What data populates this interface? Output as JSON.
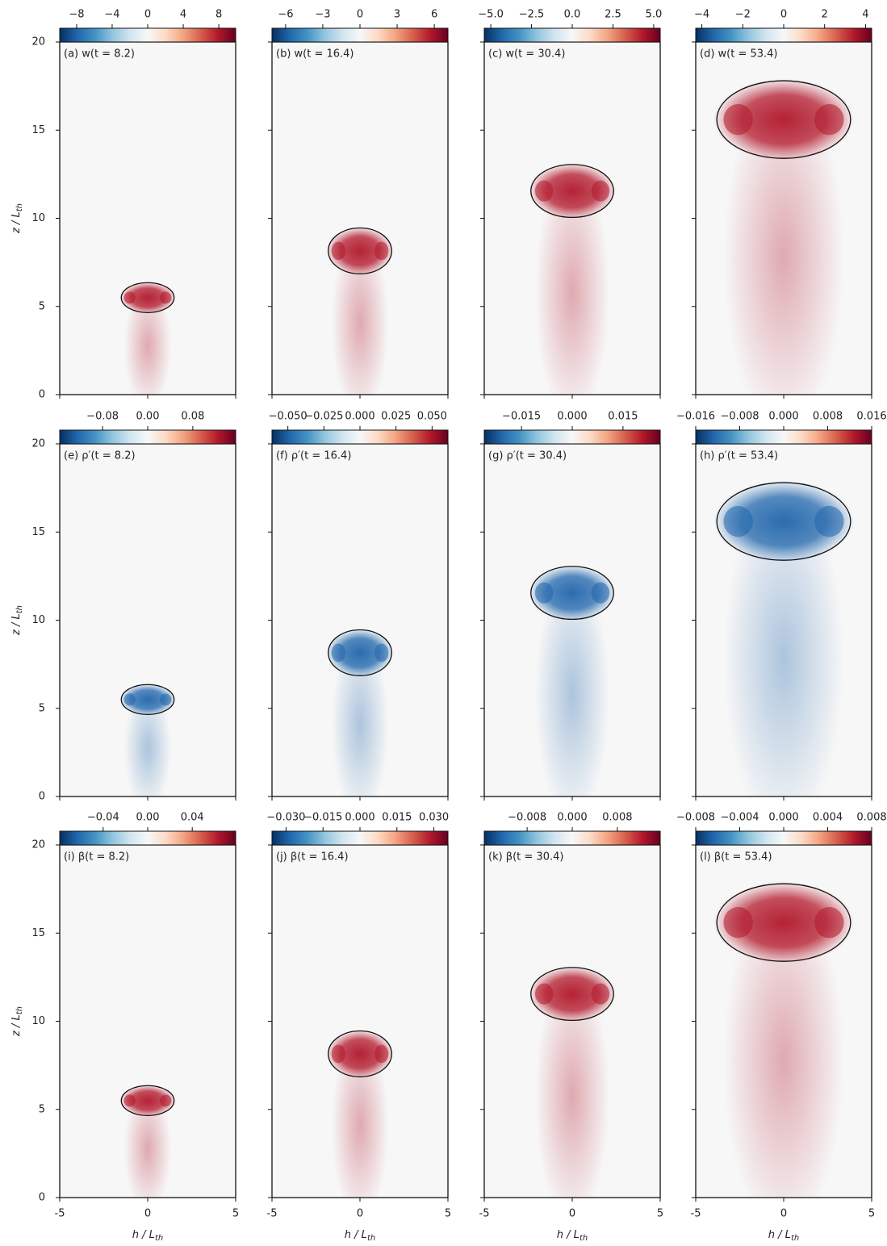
{
  "colormap": [
    "#053061",
    "#2166ac",
    "#4393c3",
    "#92c5de",
    "#d1e5f0",
    "#f7f7f7",
    "#fddbc7",
    "#f4a582",
    "#d6604d",
    "#b2182b",
    "#67001f"
  ],
  "chart_data": [
    {
      "type": "heatmap",
      "title": "(a) w(t = 8.2)",
      "color": "#b2182b",
      "xlim": [
        -5,
        5
      ],
      "ylim": [
        0,
        20
      ],
      "xticks": [
        -5,
        0,
        5
      ],
      "yticks": [
        0,
        5,
        10,
        15,
        20
      ],
      "ylabel": {
        "text": "z / L",
        "sub": "th"
      },
      "ellipse": {
        "center": [
          0,
          5.5
        ],
        "radii": [
          1.5,
          0.85
        ]
      },
      "colorbar": {
        "clim": [
          -9.9,
          9.9
        ],
        "ticks": [
          {
            "value": -8,
            "label": "−8"
          },
          {
            "value": -4,
            "label": "−4"
          },
          0,
          4,
          8
        ]
      }
    },
    {
      "type": "heatmap",
      "title": "(b) w(t = 16.4)",
      "color": "#b2182b",
      "xlim": [
        -5,
        5
      ],
      "ylim": [
        0,
        20
      ],
      "xticks": [
        -5,
        0,
        5
      ],
      "yticks": [
        0,
        5,
        10,
        15,
        20
      ],
      "ellipse": {
        "center": [
          0,
          8.15
        ],
        "radii": [
          1.8,
          1.3
        ]
      },
      "colorbar": {
        "clim": [
          -7.1,
          7.1
        ],
        "ticks": [
          {
            "value": -6,
            "label": "−6"
          },
          {
            "value": -3,
            "label": "−3"
          },
          0,
          3,
          6
        ]
      }
    },
    {
      "type": "heatmap",
      "title": "(c) w(t = 30.4)",
      "color": "#b2182b",
      "xlim": [
        -5,
        5
      ],
      "ylim": [
        0,
        20
      ],
      "xticks": [
        -5,
        0,
        5
      ],
      "yticks": [
        0,
        5,
        10,
        15,
        20
      ],
      "ellipse": {
        "center": [
          0,
          11.55
        ],
        "radii": [
          2.35,
          1.5
        ]
      },
      "colorbar": {
        "clim": [
          -5.4,
          5.4
        ],
        "ticks": [
          {
            "value": -5,
            "label": "−5.0"
          },
          {
            "value": -2.5,
            "label": "−2.5"
          },
          {
            "value": 0,
            "label": "0.0"
          },
          2.5,
          {
            "value": 5,
            "label": "5.0"
          }
        ]
      }
    },
    {
      "type": "heatmap",
      "title": "(d) w(t = 53.4)",
      "color": "#b2182b",
      "xlim": [
        -5,
        5
      ],
      "ylim": [
        0,
        20
      ],
      "xticks": [
        -5,
        0,
        5
      ],
      "yticks": [
        0,
        5,
        10,
        15,
        20
      ],
      "ellipse": {
        "center": [
          0,
          15.6
        ],
        "radii": [
          3.8,
          2.2
        ]
      },
      "colorbar": {
        "clim": [
          -4.3,
          4.3
        ],
        "ticks": [
          {
            "value": -4,
            "label": "−4"
          },
          {
            "value": -2,
            "label": "−2"
          },
          0,
          2,
          4
        ]
      }
    },
    {
      "type": "heatmap",
      "title": "(e) ρ′(t = 8.2)",
      "color": "#2166ac",
      "xlim": [
        -5,
        5
      ],
      "ylim": [
        0,
        20
      ],
      "xticks": [
        -5,
        0,
        5
      ],
      "yticks": [
        0,
        5,
        10,
        15,
        20
      ],
      "ylabel": {
        "text": "z / L",
        "sub": "th"
      },
      "ellipse": {
        "center": [
          0,
          5.5
        ],
        "radii": [
          1.5,
          0.85
        ]
      },
      "colorbar": {
        "clim": [
          -0.156,
          0.156
        ],
        "ticks": [
          {
            "value": -0.08,
            "label": "−0.08"
          },
          {
            "value": 0,
            "label": "0.00"
          },
          0.08
        ]
      }
    },
    {
      "type": "heatmap",
      "title": "(f) ρ′(t = 16.4)",
      "color": "#2166ac",
      "xlim": [
        -5,
        5
      ],
      "ylim": [
        0,
        20
      ],
      "xticks": [
        -5,
        0,
        5
      ],
      "yticks": [
        0,
        5,
        10,
        15,
        20
      ],
      "ellipse": {
        "center": [
          0,
          8.15
        ],
        "radii": [
          1.8,
          1.3
        ]
      },
      "colorbar": {
        "clim": [
          -0.061,
          0.061
        ],
        "ticks": [
          {
            "value": -0.05,
            "label": "−0.050"
          },
          {
            "value": -0.025,
            "label": "−0.025"
          },
          {
            "value": 0,
            "label": "0.000"
          },
          0.025,
          {
            "value": 0.05,
            "label": "0.050"
          }
        ]
      }
    },
    {
      "type": "heatmap",
      "title": "(g) ρ′(t = 30.4)",
      "color": "#2166ac",
      "xlim": [
        -5,
        5
      ],
      "ylim": [
        0,
        20
      ],
      "xticks": [
        -5,
        0,
        5
      ],
      "yticks": [
        0,
        5,
        10,
        15,
        20
      ],
      "ellipse": {
        "center": [
          0,
          11.55
        ],
        "radii": [
          2.35,
          1.5
        ]
      },
      "colorbar": {
        "clim": [
          -0.026,
          0.026
        ],
        "ticks": [
          {
            "value": -0.015,
            "label": "−0.015"
          },
          {
            "value": 0,
            "label": "0.000"
          },
          0.015
        ]
      }
    },
    {
      "type": "heatmap",
      "title": "(h) ρ′(t = 53.4)",
      "color": "#2166ac",
      "xlim": [
        -5,
        5
      ],
      "ylim": [
        0,
        20
      ],
      "xticks": [
        -5,
        0,
        5
      ],
      "yticks": [
        0,
        5,
        10,
        15,
        20
      ],
      "ellipse": {
        "center": [
          0,
          15.6
        ],
        "radii": [
          3.8,
          2.2
        ]
      },
      "colorbar": {
        "clim": [
          -0.016,
          0.016
        ],
        "ticks": [
          {
            "value": -0.016,
            "label": "−0.016"
          },
          {
            "value": -0.008,
            "label": "−0.008"
          },
          {
            "value": 0,
            "label": "0.000"
          },
          0.008,
          0.016
        ]
      }
    },
    {
      "type": "heatmap",
      "title": "(i) β(t = 8.2)",
      "color": "#b2182b",
      "xlim": [
        -5,
        5
      ],
      "ylim": [
        0,
        20
      ],
      "xticks": [
        -5,
        0,
        5
      ],
      "yticks": [
        0,
        5,
        10,
        15,
        20
      ],
      "ylabel": {
        "text": "z / L",
        "sub": "th"
      },
      "xlabel": {
        "text": "h / L",
        "sub": "th"
      },
      "ellipse": {
        "center": [
          0,
          5.5
        ],
        "radii": [
          1.5,
          0.85
        ]
      },
      "colorbar": {
        "clim": [
          -0.079,
          0.079
        ],
        "ticks": [
          {
            "value": -0.04,
            "label": "−0.04"
          },
          {
            "value": 0,
            "label": "0.00"
          },
          0.04
        ]
      }
    },
    {
      "type": "heatmap",
      "title": "(j) β(t = 16.4)",
      "color": "#b2182b",
      "xlim": [
        -5,
        5
      ],
      "ylim": [
        0,
        20
      ],
      "xticks": [
        -5,
        0,
        5
      ],
      "yticks": [
        0,
        5,
        10,
        15,
        20
      ],
      "xlabel": {
        "text": "h / L",
        "sub": "th"
      },
      "ellipse": {
        "center": [
          0,
          8.15
        ],
        "radii": [
          1.8,
          1.3
        ]
      },
      "colorbar": {
        "clim": [
          -0.0357,
          0.0357
        ],
        "ticks": [
          {
            "value": -0.03,
            "label": "−0.030"
          },
          {
            "value": -0.015,
            "label": "−0.015"
          },
          {
            "value": 0,
            "label": "0.000"
          },
          0.015,
          {
            "value": 0.03,
            "label": "0.030"
          }
        ]
      }
    },
    {
      "type": "heatmap",
      "title": "(k) β(t = 30.4)",
      "color": "#b2182b",
      "xlim": [
        -5,
        5
      ],
      "ylim": [
        0,
        20
      ],
      "xticks": [
        -5,
        0,
        5
      ],
      "yticks": [
        0,
        5,
        10,
        15,
        20
      ],
      "xlabel": {
        "text": "h / L",
        "sub": "th"
      },
      "ellipse": {
        "center": [
          0,
          11.55
        ],
        "radii": [
          2.35,
          1.5
        ]
      },
      "colorbar": {
        "clim": [
          -0.0156,
          0.0156
        ],
        "ticks": [
          {
            "value": -0.008,
            "label": "−0.008"
          },
          {
            "value": 0,
            "label": "0.000"
          },
          0.008
        ]
      }
    },
    {
      "type": "heatmap",
      "title": "(l) β(t = 53.4)",
      "color": "#b2182b",
      "xlim": [
        -5,
        5
      ],
      "ylim": [
        0,
        20
      ],
      "xticks": [
        -5,
        0,
        5
      ],
      "yticks": [
        0,
        5,
        10,
        15,
        20
      ],
      "xlabel": {
        "text": "h / L",
        "sub": "th"
      },
      "ellipse": {
        "center": [
          0,
          15.6
        ],
        "radii": [
          3.8,
          2.2
        ]
      },
      "colorbar": {
        "clim": [
          -0.008,
          0.008
        ],
        "ticks": [
          {
            "value": -0.008,
            "label": "−0.008"
          },
          {
            "value": -0.004,
            "label": "−0.004"
          },
          {
            "value": 0,
            "label": "0.000"
          },
          0.004,
          0.008
        ]
      }
    }
  ]
}
